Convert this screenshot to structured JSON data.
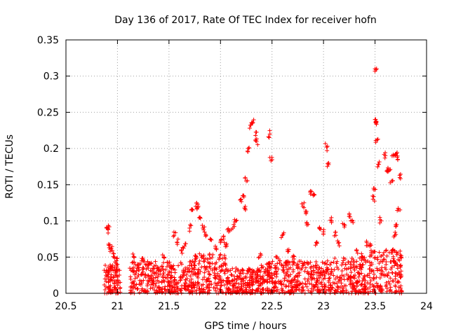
{
  "chart_data": {
    "type": "scatter",
    "title": "Day 136 of 2017, Rate Of TEC Index for receiver hofn",
    "xlabel": "GPS time / hours",
    "ylabel": "ROTI / TECUs",
    "xlim": [
      20.5,
      24
    ],
    "ylim": [
      0,
      0.35
    ],
    "xticks": [
      "20.5",
      "21",
      "21.5",
      "22",
      "22.5",
      "23",
      "23.5",
      "24"
    ],
    "yticks": [
      "0",
      "0.05",
      "0.1",
      "0.15",
      "0.2",
      "0.25",
      "0.3",
      "0.35"
    ],
    "grid": true,
    "marker": "+",
    "color": "#ff0000",
    "series": [
      {
        "name": "ROTI",
        "points": [
          [
            20.9,
            0.09
          ],
          [
            20.91,
            0.088
          ],
          [
            20.92,
            0.063
          ],
          [
            20.94,
            0.062
          ],
          [
            20.96,
            0.055
          ],
          [
            20.97,
            0.05
          ],
          [
            20.99,
            0.045
          ],
          [
            21.0,
            0.04
          ],
          [
            20.92,
            0.03
          ],
          [
            20.95,
            0.035
          ],
          [
            20.98,
            0.028
          ],
          [
            21.16,
            0.05
          ],
          [
            21.2,
            0.04
          ],
          [
            21.25,
            0.045
          ],
          [
            21.3,
            0.04
          ],
          [
            21.4,
            0.035
          ],
          [
            21.45,
            0.05
          ],
          [
            21.55,
            0.08
          ],
          [
            21.58,
            0.07
          ],
          [
            21.62,
            0.06
          ],
          [
            21.65,
            0.065
          ],
          [
            21.7,
            0.09
          ],
          [
            21.73,
            0.115
          ],
          [
            21.76,
            0.12
          ],
          [
            21.78,
            0.123
          ],
          [
            21.8,
            0.105
          ],
          [
            21.83,
            0.09
          ],
          [
            21.86,
            0.08
          ],
          [
            21.9,
            0.075
          ],
          [
            21.95,
            0.065
          ],
          [
            22.0,
            0.07
          ],
          [
            22.03,
            0.075
          ],
          [
            22.06,
            0.065
          ],
          [
            22.08,
            0.085
          ],
          [
            22.12,
            0.09
          ],
          [
            22.15,
            0.1
          ],
          [
            22.2,
            0.13
          ],
          [
            22.22,
            0.135
          ],
          [
            22.24,
            0.12
          ],
          [
            22.25,
            0.155
          ],
          [
            22.27,
            0.2
          ],
          [
            22.29,
            0.232
          ],
          [
            22.31,
            0.235
          ],
          [
            22.34,
            0.218
          ],
          [
            22.35,
            0.21
          ],
          [
            22.38,
            0.05
          ],
          [
            22.4,
            0.035
          ],
          [
            22.48,
            0.22
          ],
          [
            22.49,
            0.183
          ],
          [
            22.55,
            0.05
          ],
          [
            22.6,
            0.08
          ],
          [
            22.65,
            0.06
          ],
          [
            22.7,
            0.05
          ],
          [
            22.75,
            0.04
          ],
          [
            22.8,
            0.12
          ],
          [
            22.83,
            0.11
          ],
          [
            22.85,
            0.095
          ],
          [
            22.87,
            0.14
          ],
          [
            22.9,
            0.135
          ],
          [
            22.93,
            0.07
          ],
          [
            22.96,
            0.09
          ],
          [
            23.0,
            0.085
          ],
          [
            23.03,
            0.202
          ],
          [
            23.05,
            0.18
          ],
          [
            23.08,
            0.1
          ],
          [
            23.12,
            0.08
          ],
          [
            23.15,
            0.07
          ],
          [
            23.2,
            0.095
          ],
          [
            23.25,
            0.11
          ],
          [
            23.28,
            0.1
          ],
          [
            23.32,
            0.06
          ],
          [
            23.38,
            0.05
          ],
          [
            23.42,
            0.07
          ],
          [
            23.45,
            0.065
          ],
          [
            23.48,
            0.13
          ],
          [
            23.49,
            0.145
          ],
          [
            23.5,
            0.31
          ],
          [
            23.5,
            0.24
          ],
          [
            23.51,
            0.235
          ],
          [
            23.52,
            0.212
          ],
          [
            23.53,
            0.178
          ],
          [
            23.56,
            0.1
          ],
          [
            23.6,
            0.19
          ],
          [
            23.62,
            0.17
          ],
          [
            23.64,
            0.17
          ],
          [
            23.66,
            0.155
          ],
          [
            23.68,
            0.19
          ],
          [
            23.7,
            0.192
          ],
          [
            23.72,
            0.185
          ],
          [
            23.74,
            0.16
          ],
          [
            23.73,
            0.115
          ],
          [
            23.71,
            0.095
          ],
          [
            23.69,
            0.08
          ],
          [
            23.67,
            0.06
          ],
          [
            23.75,
            0.05
          ]
        ],
        "dense_band": {
          "segments": [
            {
              "x": [
                20.87,
                21.03
              ],
              "y": [
                0.0,
                0.04
              ]
            },
            {
              "x": [
                21.12,
                21.75
              ],
              "y": [
                0.0,
                0.045
              ]
            },
            {
              "x": [
                21.75,
                22.05
              ],
              "y": [
                0.0,
                0.055
              ]
            },
            {
              "x": [
                22.05,
                22.45
              ],
              "y": [
                0.0,
                0.035
              ]
            },
            {
              "x": [
                22.45,
                23.1
              ],
              "y": [
                0.0,
                0.045
              ]
            },
            {
              "x": [
                23.1,
                23.45
              ],
              "y": [
                0.0,
                0.05
              ]
            },
            {
              "x": [
                23.45,
                23.76
              ],
              "y": [
                0.0,
                0.06
              ]
            }
          ],
          "count": 1500
        }
      }
    ]
  }
}
